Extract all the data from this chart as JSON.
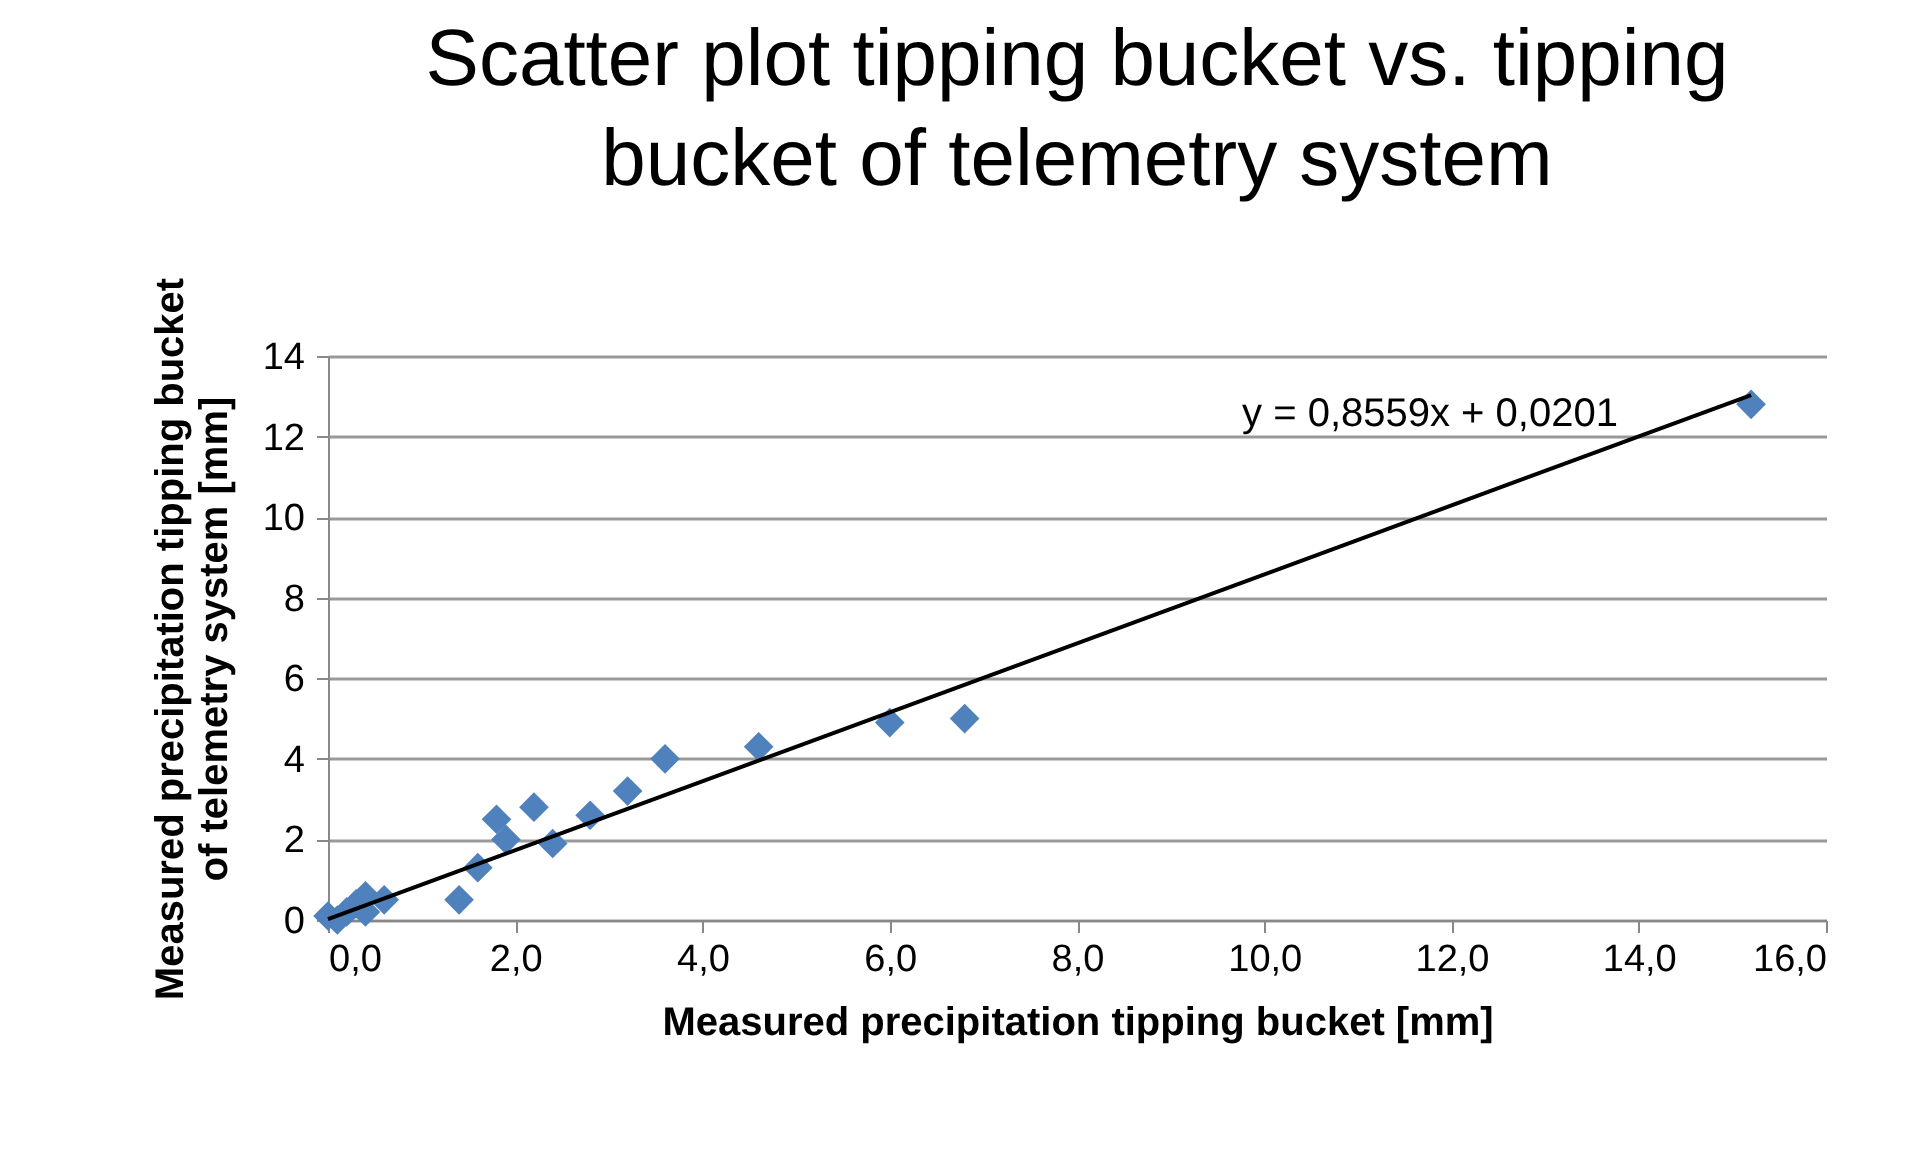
{
  "chart_data": {
    "type": "scatter",
    "title": "Scatter plot tipping bucket vs. tipping bucket of telemetry system",
    "xlabel": "Measured precipitation tipping bucket [mm]",
    "ylabel": "Measured precipitation tipping bucket of telemetry system [mm]",
    "series": [
      {
        "color": "#4f81bd",
        "marker": "diamond",
        "x": [
          0,
          0.1,
          0.2,
          0.3,
          0.4,
          0.4,
          0.6,
          1.4,
          1.6,
          1.8,
          1.9,
          2.2,
          2.4,
          2.8,
          3.2,
          3.6,
          4.6,
          6.0,
          6.8,
          15.2
        ],
        "values": [
          0.1,
          0,
          0.2,
          0.4,
          0.6,
          0.2,
          0.5,
          0.5,
          1.3,
          2.5,
          2.0,
          2.8,
          1.9,
          2.6,
          3.2,
          4.0,
          4.3,
          4.9,
          5.0,
          12.8
        ]
      },
      {
        "type": "line",
        "color": "#000000",
        "marker": "none",
        "x": [
          0,
          15.2
        ],
        "values": [
          0.02,
          13.03
        ]
      }
    ],
    "annotations": [
      "y = 0,8559x + 0,0201"
    ],
    "xlim": [
      0,
      16
    ],
    "ylim": [
      0,
      14
    ],
    "xticks": [
      {
        "value": 0,
        "label": "0,0"
      },
      {
        "value": 2,
        "label": "2,0"
      },
      {
        "value": 4,
        "label": "4,0"
      },
      {
        "value": 6,
        "label": "6,0"
      },
      {
        "value": 8,
        "label": "8,0"
      },
      {
        "value": 10,
        "label": "10,0"
      },
      {
        "value": 12,
        "label": "12,0"
      },
      {
        "value": 14,
        "label": "14,0"
      },
      {
        "value": 16,
        "label": "16,0"
      }
    ],
    "yticks": [
      0,
      2,
      4,
      6,
      8,
      10,
      12,
      14
    ],
    "grid": "y",
    "legend": false
  }
}
